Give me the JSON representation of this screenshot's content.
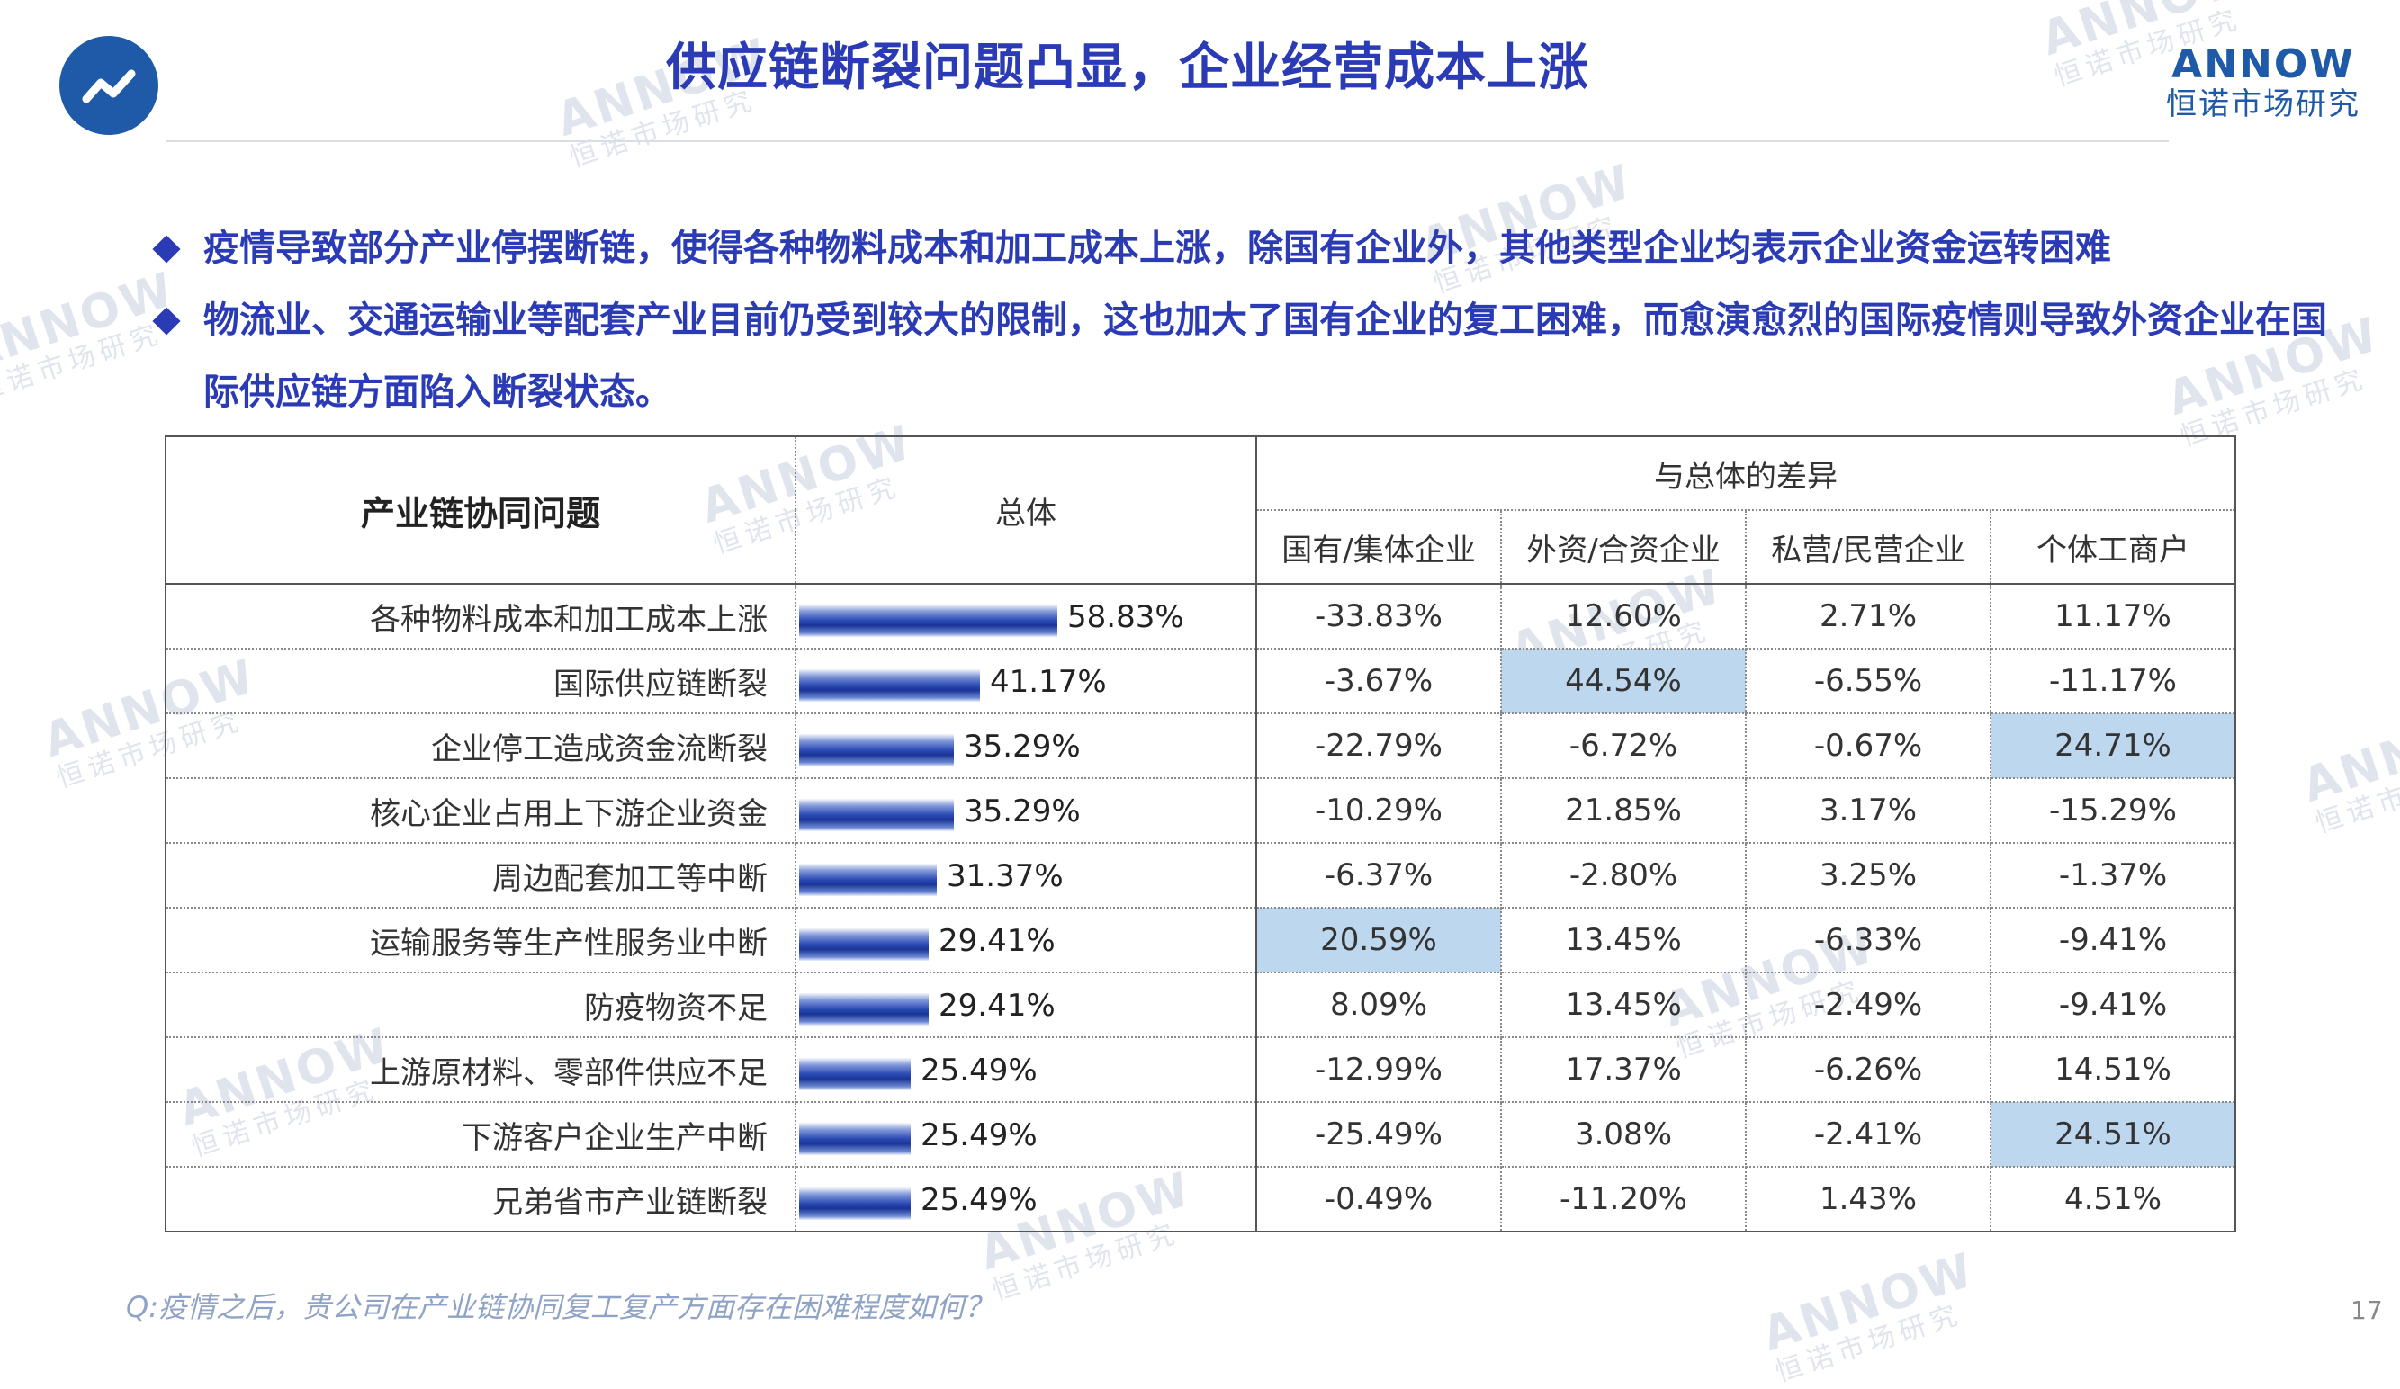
{
  "slide": {
    "title": "供应链断裂问题凸显，企业经营成本上涨",
    "page_number": "17",
    "footnote": "Q:疫情之后，贵公司在产业链协同复工复产方面存在困难程度如何？"
  },
  "brand": {
    "name": "ANNOW",
    "name_cn": "恒诺市场研究",
    "color": "#1e5aa8",
    "watermark_name": "ANNOW",
    "watermark_cn": "恒诺市场研究"
  },
  "icon": {
    "name": "trend-line-icon"
  },
  "bullets": [
    "疫情导致部分产业停摆断链，使得各种物料成本和加工成本上涨，除国有企业外，其他类型企业均表示企业资金运转困难",
    "物流业、交通运输业等配套产业目前仍受到较大的限制，这也加大了国有企业的复工困难，而愈演愈烈的国际疫情则导致外资企业在国际供应链方面陷入断裂状态。"
  ],
  "table": {
    "headers": {
      "issue": "产业链协同问题",
      "total": "总体",
      "diff_group": "与总体的差异",
      "sub": [
        "国有/集体企业",
        "外资/合资企业",
        "私营/民营企业",
        "个体工商户"
      ]
    },
    "highlight_color": "#bdd7ee",
    "bar_color": "#2a49b4",
    "rows": [
      {
        "issue": "各种物料成本和加工成本上涨",
        "total": "58.83%",
        "total_value": 58.83,
        "diffs": [
          "-33.83%",
          "12.60%",
          "2.71%",
          "11.17%"
        ],
        "highlight": [
          false,
          false,
          false,
          false
        ]
      },
      {
        "issue": "国际供应链断裂",
        "total": "41.17%",
        "total_value": 41.17,
        "diffs": [
          "-3.67%",
          "44.54%",
          "-6.55%",
          "-11.17%"
        ],
        "highlight": [
          false,
          true,
          false,
          false
        ]
      },
      {
        "issue": "企业停工造成资金流断裂",
        "total": "35.29%",
        "total_value": 35.29,
        "diffs": [
          "-22.79%",
          "-6.72%",
          "-0.67%",
          "24.71%"
        ],
        "highlight": [
          false,
          false,
          false,
          true
        ]
      },
      {
        "issue": "核心企业占用上下游企业资金",
        "total": "35.29%",
        "total_value": 35.29,
        "diffs": [
          "-10.29%",
          "21.85%",
          "3.17%",
          "-15.29%"
        ],
        "highlight": [
          false,
          false,
          false,
          false
        ]
      },
      {
        "issue": "周边配套加工等中断",
        "total": "31.37%",
        "total_value": 31.37,
        "diffs": [
          "-6.37%",
          "-2.80%",
          "3.25%",
          "-1.37%"
        ],
        "highlight": [
          false,
          false,
          false,
          false
        ]
      },
      {
        "issue": "运输服务等生产性服务业中断",
        "total": "29.41%",
        "total_value": 29.41,
        "diffs": [
          "20.59%",
          "13.45%",
          "-6.33%",
          "-9.41%"
        ],
        "highlight": [
          true,
          false,
          false,
          false
        ]
      },
      {
        "issue": "防疫物资不足",
        "total": "29.41%",
        "total_value": 29.41,
        "diffs": [
          "8.09%",
          "13.45%",
          "-2.49%",
          "-9.41%"
        ],
        "highlight": [
          false,
          false,
          false,
          false
        ]
      },
      {
        "issue": "上游原材料、零部件供应不足",
        "total": "25.49%",
        "total_value": 25.49,
        "diffs": [
          "-12.99%",
          "17.37%",
          "-6.26%",
          "14.51%"
        ],
        "highlight": [
          false,
          false,
          false,
          false
        ]
      },
      {
        "issue": "下游客户企业生产中断",
        "total": "25.49%",
        "total_value": 25.49,
        "diffs": [
          "-25.49%",
          "3.08%",
          "-2.41%",
          "24.51%"
        ],
        "highlight": [
          false,
          false,
          false,
          true
        ]
      },
      {
        "issue": "兄弟省市产业链断裂",
        "total": "25.49%",
        "total_value": 25.49,
        "diffs": [
          "-0.49%",
          "-11.20%",
          "1.43%",
          "4.51%"
        ],
        "highlight": [
          false,
          false,
          false,
          false
        ]
      }
    ]
  }
}
